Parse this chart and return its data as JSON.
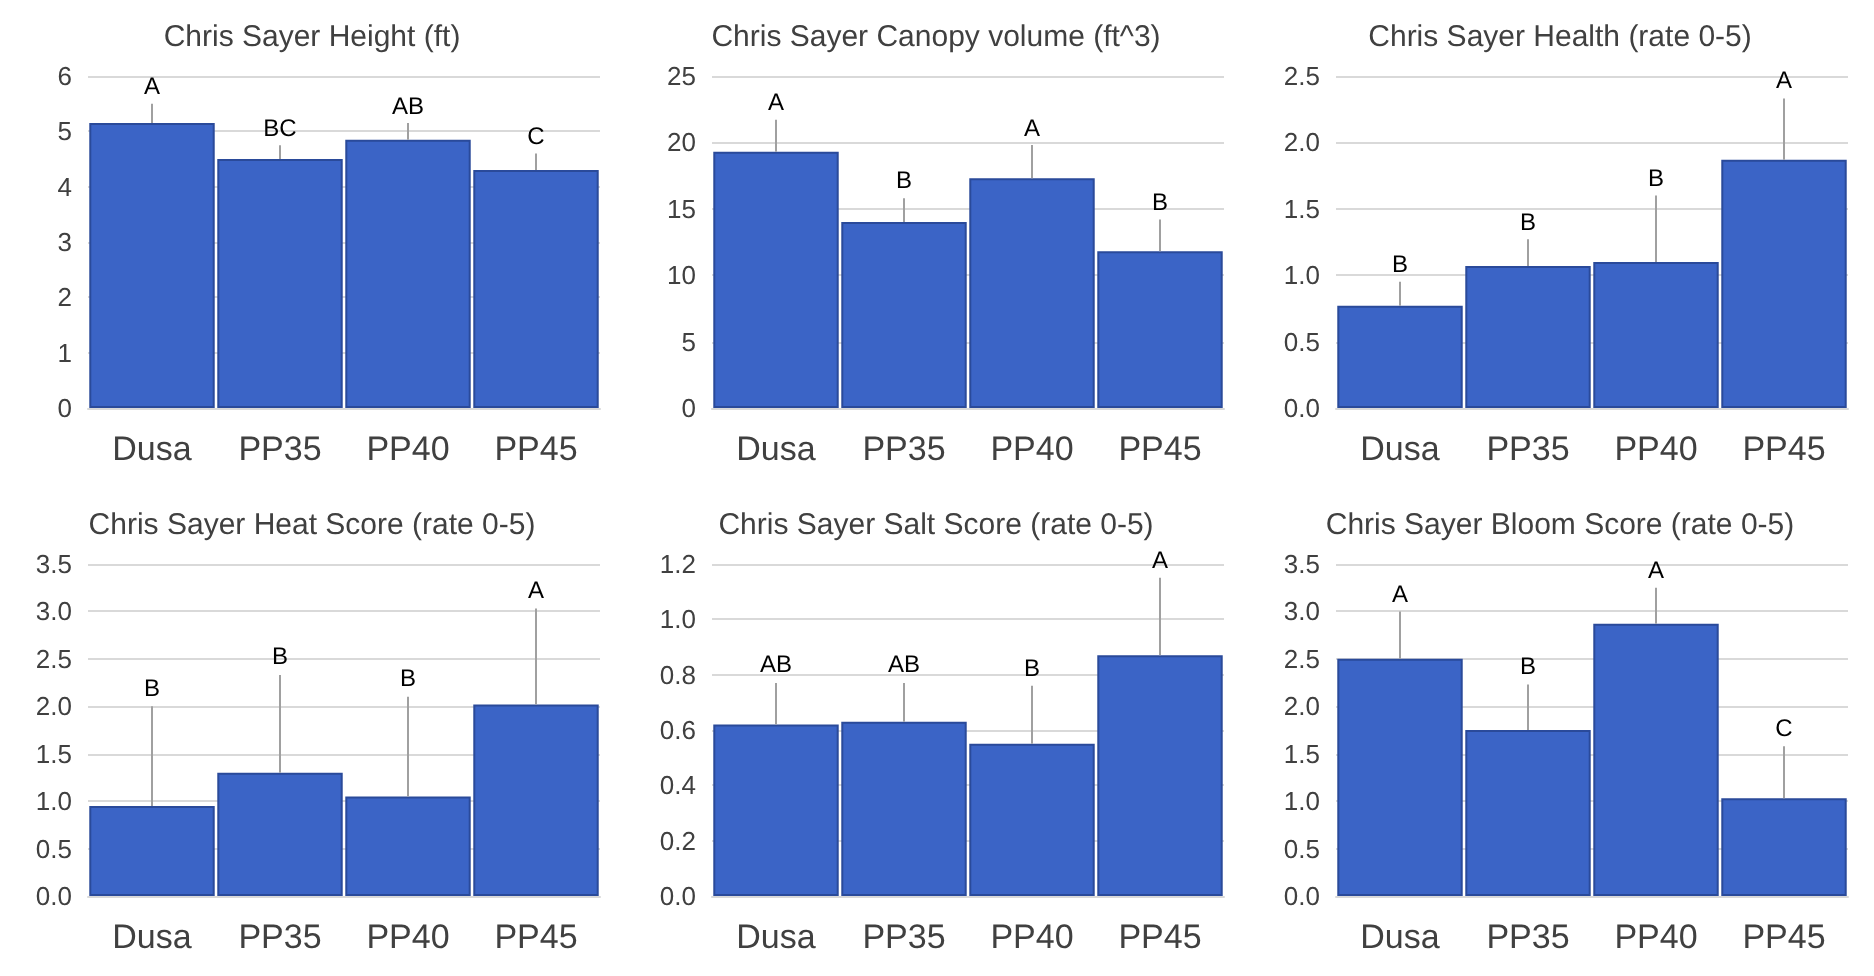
{
  "chart_data": [
    {
      "type": "bar",
      "title": "Chris Sayer Height (ft)",
      "categories": [
        "Dusa",
        "PP35",
        "PP40",
        "PP45"
      ],
      "color": "#3b64c6",
      "values": [
        5.15,
        4.5,
        4.85,
        4.3
      ],
      "errors": [
        [
          5.15,
          5.5
        ],
        [
          4.5,
          4.75
        ],
        [
          4.85,
          5.15
        ],
        [
          4.3,
          4.6
        ]
      ],
      "ylim": [
        0,
        6
      ],
      "yticks": [
        0,
        1,
        2,
        3,
        4,
        5,
        6
      ],
      "grid": "y",
      "annotations": [
        {
          "text": "A",
          "x": "Dusa",
          "y": 5.5
        },
        {
          "text": "BC",
          "x": "PP35",
          "y": 4.75
        },
        {
          "text": "AB",
          "x": "PP40",
          "y": 5.15
        },
        {
          "text": "C",
          "x": "PP45",
          "y": 4.6
        }
      ]
    },
    {
      "type": "bar",
      "title": "Chris Sayer Canopy volume (ft^3)",
      "categories": [
        "Dusa",
        "PP35",
        "PP40",
        "PP45"
      ],
      "color": "#3b64c6",
      "values": [
        19.3,
        14,
        17.3,
        11.8
      ],
      "errors": [
        [
          19.3,
          21.7
        ],
        [
          14,
          15.8
        ],
        [
          17.3,
          19.8
        ],
        [
          11.8,
          14.2
        ]
      ],
      "ylim": [
        0,
        25
      ],
      "yticks": [
        0,
        5,
        10,
        15,
        20,
        25
      ],
      "grid": "y",
      "annotations": [
        {
          "text": "A",
          "x": "Dusa",
          "y": 21.7
        },
        {
          "text": "B",
          "x": "PP35",
          "y": 15.8
        },
        {
          "text": "A",
          "x": "PP40",
          "y": 19.8
        },
        {
          "text": "B",
          "x": "PP45",
          "y": 14.2
        }
      ]
    },
    {
      "type": "bar",
      "title": "Chris Sayer Health (rate 0-5)",
      "categories": [
        "Dusa",
        "PP35",
        "PP40",
        "PP45"
      ],
      "color": "#3b64c6",
      "values": [
        0.77,
        1.07,
        1.1,
        1.87
      ],
      "errors": [
        [
          0.77,
          0.95
        ],
        [
          1.07,
          1.27
        ],
        [
          1.1,
          1.6
        ],
        [
          1.87,
          2.33
        ]
      ],
      "ylim": [
        0,
        2.5
      ],
      "yticks": [
        {
          "value": 0,
          "label": "0.0"
        },
        {
          "value": 0.5,
          "label": "0.5"
        },
        {
          "value": 1,
          "label": "1.0"
        },
        {
          "value": 1.5,
          "label": "1.5"
        },
        {
          "value": 2,
          "label": "2.0"
        },
        {
          "value": 2.5,
          "label": "2.5"
        }
      ],
      "grid": "y",
      "annotations": [
        {
          "text": "B",
          "x": "Dusa",
          "y": 0.95
        },
        {
          "text": "B",
          "x": "PP35",
          "y": 1.27
        },
        {
          "text": "B",
          "x": "PP40",
          "y": 1.6
        },
        {
          "text": "A",
          "x": "PP45",
          "y": 2.33
        }
      ]
    },
    {
      "type": "bar",
      "title": "Chris Sayer Heat Score (rate 0-5)",
      "categories": [
        "Dusa",
        "PP35",
        "PP40",
        "PP45"
      ],
      "color": "#3b64c6",
      "values": [
        0.95,
        1.3,
        1.05,
        2.02
      ],
      "errors": [
        [
          0.95,
          2.0
        ],
        [
          1.3,
          2.33
        ],
        [
          1.05,
          2.1
        ],
        [
          2.02,
          3.03
        ]
      ],
      "ylim": [
        0,
        3.5
      ],
      "yticks": [
        {
          "value": 0,
          "label": "0.0"
        },
        {
          "value": 0.5,
          "label": "0.5"
        },
        {
          "value": 1,
          "label": "1.0"
        },
        {
          "value": 1.5,
          "label": "1.5"
        },
        {
          "value": 2,
          "label": "2.0"
        },
        {
          "value": 2.5,
          "label": "2.5"
        },
        {
          "value": 3,
          "label": "3.0"
        },
        {
          "value": 3.5,
          "label": "3.5"
        }
      ],
      "grid": "y",
      "annotations": [
        {
          "text": "B",
          "x": "Dusa",
          "y": 2.0
        },
        {
          "text": "B",
          "x": "PP35",
          "y": 2.33
        },
        {
          "text": "B",
          "x": "PP40",
          "y": 2.1
        },
        {
          "text": "A",
          "x": "PP45",
          "y": 3.03
        }
      ]
    },
    {
      "type": "bar",
      "title": "Chris Sayer Salt Score (rate 0-5)",
      "categories": [
        "Dusa",
        "PP35",
        "PP40",
        "PP45"
      ],
      "color": "#3b64c6",
      "values": [
        0.62,
        0.63,
        0.55,
        0.87
      ],
      "errors": [
        [
          0.62,
          0.77
        ],
        [
          0.63,
          0.77
        ],
        [
          0.55,
          0.76
        ],
        [
          0.87,
          1.15
        ]
      ],
      "ylim": [
        0,
        1.2
      ],
      "yticks": [
        {
          "value": 0,
          "label": "0.0"
        },
        {
          "value": 0.2,
          "label": "0.2"
        },
        {
          "value": 0.4,
          "label": "0.4"
        },
        {
          "value": 0.6,
          "label": "0.6"
        },
        {
          "value": 0.8,
          "label": "0.8"
        },
        {
          "value": 1,
          "label": "1.0"
        },
        {
          "value": 1.2,
          "label": "1.2"
        }
      ],
      "grid": "y",
      "annotations": [
        {
          "text": "AB",
          "x": "Dusa",
          "y": 0.77
        },
        {
          "text": "AB",
          "x": "PP35",
          "y": 0.77
        },
        {
          "text": "B",
          "x": "PP40",
          "y": 0.76
        },
        {
          "text": "A",
          "x": "PP45",
          "y": 1.15
        }
      ]
    },
    {
      "type": "bar",
      "title": "Chris Sayer Bloom Score (rate 0-5)",
      "categories": [
        "Dusa",
        "PP35",
        "PP40",
        "PP45"
      ],
      "color": "#3b64c6",
      "values": [
        2.5,
        1.75,
        2.87,
        1.03
      ],
      "errors": [
        [
          2.5,
          3.0
        ],
        [
          1.75,
          2.23
        ],
        [
          2.87,
          3.25
        ],
        [
          1.03,
          1.58
        ]
      ],
      "ylim": [
        0,
        3.5
      ],
      "yticks": [
        {
          "value": 0,
          "label": "0.0"
        },
        {
          "value": 0.5,
          "label": "0.5"
        },
        {
          "value": 1,
          "label": "1.0"
        },
        {
          "value": 1.5,
          "label": "1.5"
        },
        {
          "value": 2,
          "label": "2.0"
        },
        {
          "value": 2.5,
          "label": "2.5"
        },
        {
          "value": 3,
          "label": "3.0"
        },
        {
          "value": 3.5,
          "label": "3.5"
        }
      ],
      "grid": "y",
      "annotations": [
        {
          "text": "A",
          "x": "Dusa",
          "y": 3.0
        },
        {
          "text": "B",
          "x": "PP35",
          "y": 2.23
        },
        {
          "text": "A",
          "x": "PP40",
          "y": 3.25
        },
        {
          "text": "C",
          "x": "PP45",
          "y": 1.58
        }
      ]
    }
  ]
}
